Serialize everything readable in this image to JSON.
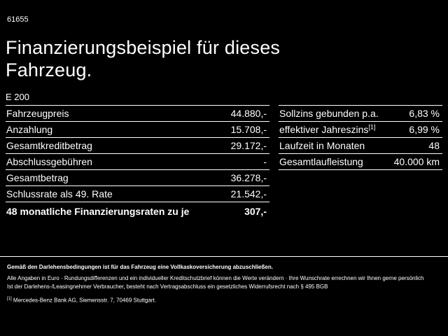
{
  "page_id": "61655",
  "title": "Finanzierungsbeispiel für dieses Fahrzeug.",
  "model": "E 200",
  "left_table": {
    "rows": [
      {
        "label": "Fahrzeugpreis",
        "value": "44.880,-"
      },
      {
        "label": "Anzahlung",
        "value": "15.708,-"
      },
      {
        "label": "Gesamtkreditbetrag",
        "value": "29.172,-"
      },
      {
        "label": "Abschlussgebühren",
        "value": "-"
      },
      {
        "label": "Gesamtbetrag",
        "value": "36.278,-"
      },
      {
        "label": "Schlussrate als 49. Rate",
        "value": "21.542,-"
      },
      {
        "label": "48 monatliche Finanzierungsraten zu je",
        "value": "307,-"
      }
    ]
  },
  "right_table": {
    "rows": [
      {
        "label": "Sollzins gebunden p.a.",
        "value": "6,83 %"
      },
      {
        "label": "effektiver Jahreszins",
        "sup": "[1]",
        "value": "6,99 %"
      },
      {
        "label": "Laufzeit in Monaten",
        "value": "48"
      },
      {
        "label": "Gesamtlaufleistung",
        "value": "40.000 km"
      }
    ]
  },
  "footer": {
    "line1": "Gemäß den Darlehensbedingungen ist für das Fahrzeug eine Vollkaskoversicherung abzuschließen.",
    "line2": "Alle Angaben in Euro · Rundungsdifferenzen und ein individueller Kreditschutzbrief können die Werte verändern · Ihre Wunschrate errechnen wir Ihnen gerne persönlich",
    "line3": "Ist der Darlehens-/Leasingnehmer Verbraucher, besteht nach Vertragsabschluss ein gesetzliches Widerrufsrecht nach § 495 BGB",
    "note_ref": "[1]",
    "line4": "Mercedes-Benz Bank AG, Siemensstr. 7, 70469 Stuttgart."
  }
}
